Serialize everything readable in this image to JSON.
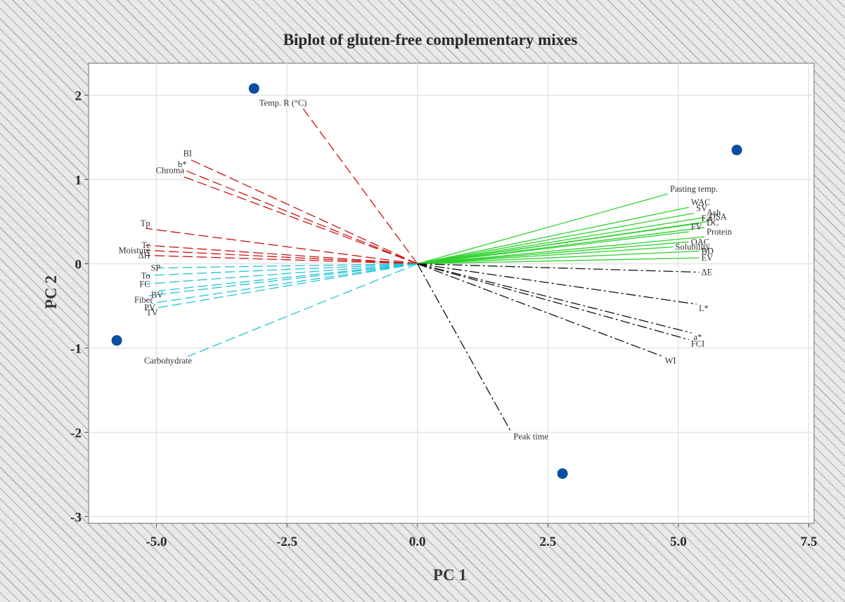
{
  "chart_data": {
    "type": "scatter",
    "title": "Biplot of gluten-free complementary mixes",
    "xlabel": "PC 1",
    "ylabel": "PC 2",
    "xlim": [
      -6.3,
      7.6
    ],
    "ylim": [
      -3.08,
      2.38
    ],
    "xticks": [
      -5.0,
      -2.5,
      0.0,
      2.5,
      5.0,
      7.5
    ],
    "xtick_labels": [
      "-5.0",
      "-2.5",
      "0.0",
      "2.5",
      "5.0",
      "7.5"
    ],
    "yticks": [
      -3,
      -2,
      -1,
      0,
      1,
      2
    ],
    "ytick_labels": [
      "-3",
      "-2",
      "-1",
      "0",
      "1",
      "2"
    ],
    "grid": true,
    "points": [
      {
        "x": -3.13,
        "y": 2.08
      },
      {
        "x": -5.76,
        "y": -0.91
      },
      {
        "x": 6.12,
        "y": 1.35
      },
      {
        "x": 2.78,
        "y": -2.49
      }
    ],
    "point_color": "#0b4ea2",
    "groups": [
      {
        "color": "#cc1111",
        "style": "dashed"
      },
      {
        "color": "#22c4d8",
        "style": "dashed"
      },
      {
        "color": "#2ed12e",
        "style": "solid"
      },
      {
        "color": "#111111",
        "style": "dashdot"
      }
    ],
    "vectors": [
      {
        "label": "Temp. R (°C)",
        "x": -2.2,
        "y": 1.85,
        "group": 0
      },
      {
        "label": "BI",
        "x": -4.4,
        "y": 1.25,
        "group": 0
      },
      {
        "label": "b*",
        "x": -4.5,
        "y": 1.12,
        "group": 0
      },
      {
        "label": "Chroma",
        "x": -4.55,
        "y": 1.05,
        "group": 0
      },
      {
        "label": "Tp",
        "x": -5.2,
        "y": 0.42,
        "group": 0
      },
      {
        "label": "Tc",
        "x": -5.2,
        "y": 0.22,
        "group": 0
      },
      {
        "label": "Moisture",
        "x": -5.2,
        "y": 0.16,
        "group": 0
      },
      {
        "label": "ΔH",
        "x": -5.2,
        "y": 0.1,
        "group": 0
      },
      {
        "label": "SP",
        "x": -5.0,
        "y": -0.05,
        "group": 1
      },
      {
        "label": "To",
        "x": -5.2,
        "y": -0.14,
        "group": 1
      },
      {
        "label": "FC",
        "x": -5.2,
        "y": -0.24,
        "group": 1
      },
      {
        "label": "BV",
        "x": -4.95,
        "y": -0.32,
        "group": 1
      },
      {
        "label": "Fiber",
        "x": -5.15,
        "y": -0.38,
        "group": 1
      },
      {
        "label": "PV",
        "x": -5.1,
        "y": -0.47,
        "group": 1
      },
      {
        "label": "TV",
        "x": -5.05,
        "y": -0.53,
        "group": 1
      },
      {
        "label": "Carbohydrate",
        "x": -4.4,
        "y": -1.1,
        "group": 1
      },
      {
        "label": "Pasting temp.",
        "x": 4.8,
        "y": 0.83,
        "group": 2
      },
      {
        "label": "WAC",
        "x": 5.2,
        "y": 0.67,
        "group": 2
      },
      {
        "label": "SV",
        "x": 5.3,
        "y": 0.6,
        "group": 2
      },
      {
        "label": "Ash",
        "x": 5.5,
        "y": 0.55,
        "group": 2
      },
      {
        "label": "OSA",
        "x": 5.55,
        "y": 0.5,
        "group": 2
      },
      {
        "label": "Fat",
        "x": 5.4,
        "y": 0.48,
        "group": 2
      },
      {
        "label": "DC",
        "x": 5.5,
        "y": 0.43,
        "group": 2
      },
      {
        "label": "FV",
        "x": 5.2,
        "y": 0.38,
        "group": 2
      },
      {
        "label": "Protein",
        "x": 5.5,
        "y": 0.32,
        "group": 2
      },
      {
        "label": "OAC",
        "x": 5.2,
        "y": 0.26,
        "group": 2
      },
      {
        "label": "Solubility",
        "x": 4.9,
        "y": 0.2,
        "group": 2
      },
      {
        "label": "BD",
        "x": 5.4,
        "y": 0.15,
        "group": 2
      },
      {
        "label": "EV",
        "x": 5.4,
        "y": 0.07,
        "group": 2
      },
      {
        "label": "ΔE",
        "x": 5.4,
        "y": -0.1,
        "group": 3
      },
      {
        "label": "L*",
        "x": 5.35,
        "y": -0.48,
        "group": 3
      },
      {
        "label": "a*",
        "x": 5.25,
        "y": -0.82,
        "group": 3
      },
      {
        "label": "FCI",
        "x": 5.2,
        "y": -0.9,
        "group": 3
      },
      {
        "label": "WI",
        "x": 4.7,
        "y": -1.1,
        "group": 3
      },
      {
        "label": "Peak time",
        "x": 1.8,
        "y": -2.0,
        "group": 3
      }
    ]
  }
}
